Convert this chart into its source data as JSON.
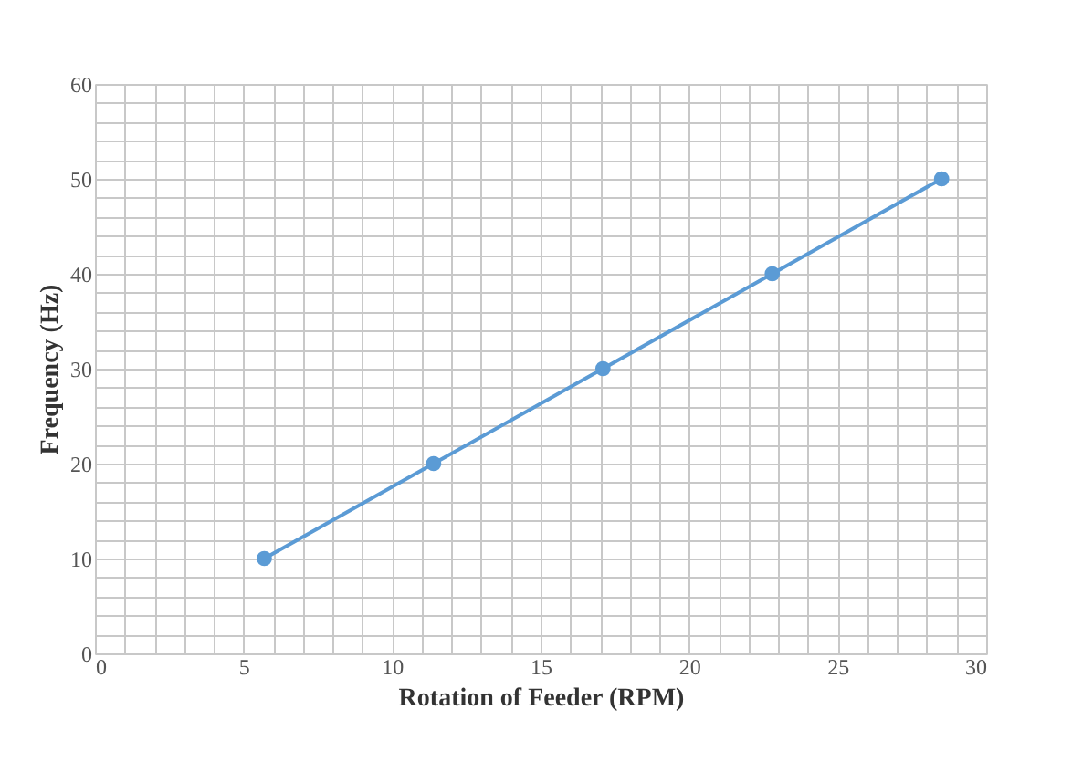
{
  "chart_data": {
    "type": "line",
    "xlabel": "Rotation of Feeder (RPM)",
    "ylabel": "Frequency (Hz)",
    "x": [
      5.7,
      11.4,
      17.1,
      22.8,
      28.5
    ],
    "series": [
      {
        "color": "#5b9bd5",
        "values": [
          10,
          20,
          30,
          40,
          50
        ]
      }
    ],
    "xlim": [
      0,
      30
    ],
    "xticks": [
      0,
      {
        "value": 1,
        "label": null
      },
      {
        "value": 2,
        "label": null
      },
      {
        "value": 3,
        "label": null
      },
      {
        "value": 4,
        "label": null
      },
      5,
      {
        "value": 6,
        "label": null
      },
      {
        "value": 7,
        "label": null
      },
      {
        "value": 8,
        "label": null
      },
      {
        "value": 9,
        "label": null
      },
      10,
      {
        "value": 11,
        "label": null
      },
      {
        "value": 12,
        "label": null
      },
      {
        "value": 13,
        "label": null
      },
      {
        "value": 14,
        "label": null
      },
      15,
      {
        "value": 16,
        "label": null
      },
      {
        "value": 17,
        "label": null
      },
      {
        "value": 18,
        "label": null
      },
      {
        "value": 19,
        "label": null
      },
      20,
      {
        "value": 21,
        "label": null
      },
      {
        "value": 22,
        "label": null
      },
      {
        "value": 23,
        "label": null
      },
      {
        "value": 24,
        "label": null
      },
      25,
      {
        "value": 26,
        "label": null
      },
      {
        "value": 27,
        "label": null
      },
      {
        "value": 28,
        "label": null
      },
      {
        "value": 29,
        "label": null
      },
      30
    ],
    "ylim": [
      0,
      60
    ],
    "yticks": [
      0,
      {
        "value": 2,
        "label": null
      },
      {
        "value": 4,
        "label": null
      },
      {
        "value": 6,
        "label": null
      },
      {
        "value": 8,
        "label": null
      },
      10,
      {
        "value": 12,
        "label": null
      },
      {
        "value": 14,
        "label": null
      },
      {
        "value": 16,
        "label": null
      },
      {
        "value": 18,
        "label": null
      },
      20,
      {
        "value": 22,
        "label": null
      },
      {
        "value": 24,
        "label": null
      },
      {
        "value": 26,
        "label": null
      },
      {
        "value": 28,
        "label": null
      },
      30,
      {
        "value": 32,
        "label": null
      },
      {
        "value": 34,
        "label": null
      },
      {
        "value": 36,
        "label": null
      },
      {
        "value": 38,
        "label": null
      },
      40,
      {
        "value": 42,
        "label": null
      },
      {
        "value": 44,
        "label": null
      },
      {
        "value": 46,
        "label": null
      },
      {
        "value": 48,
        "label": null
      },
      50,
      {
        "value": 52,
        "label": null
      },
      {
        "value": 54,
        "label": null
      },
      {
        "value": 56,
        "label": null
      },
      {
        "value": 58,
        "label": null
      },
      60
    ],
    "grid": true,
    "marker": "circle",
    "line_style": "solid"
  }
}
